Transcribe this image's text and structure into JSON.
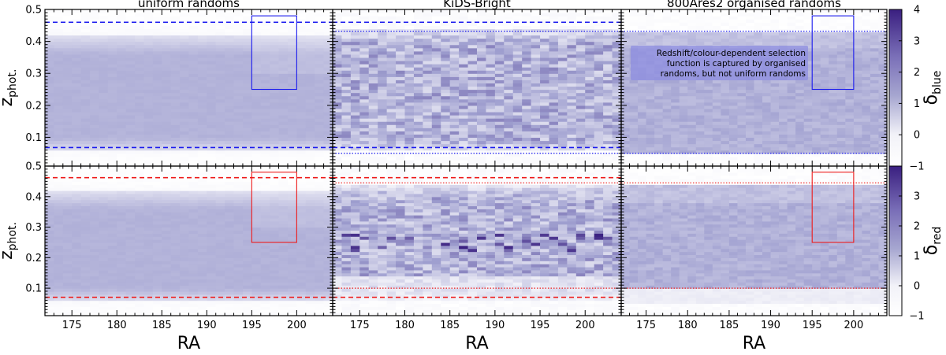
{
  "chart_data": {
    "type": "heatmap",
    "xlabel": "RA",
    "ylabel_main": "z",
    "ylabel_sub": "phot.",
    "xlim": [
      172,
      204
    ],
    "ylim": [
      0.01,
      0.5
    ],
    "xticks": [
      175,
      180,
      185,
      190,
      195,
      200
    ],
    "yticks": [
      0.1,
      0.2,
      0.3,
      0.4,
      0.5
    ],
    "columns": [
      "uniform randoms",
      "KiDS-Bright",
      "800Ares2 organised randoms"
    ],
    "rows": [
      {
        "name": "blue",
        "colorbar_label_main": "δ",
        "colorbar_label_sub": "blue",
        "colorbar_range": [
          -1,
          4
        ],
        "colorbar_ticks": [
          -1,
          0,
          1,
          2,
          3,
          4
        ],
        "line_color": "#1a1aee",
        "dashed_cuts": [
          0.068,
          0.46
        ],
        "dotted_cuts": [
          0.05,
          0.432
        ],
        "box": {
          "ra": [
            195,
            200
          ],
          "z": [
            0.25,
            0.48
          ]
        }
      },
      {
        "name": "red",
        "colorbar_label_main": "δ",
        "colorbar_label_sub": "red",
        "colorbar_range": [
          -1,
          4
        ],
        "colorbar_ticks": [
          -1,
          0,
          1,
          2,
          3
        ],
        "line_color": "#ee1a1a",
        "dashed_cuts": [
          0.07,
          0.462
        ],
        "dotted_cuts": [
          0.1,
          0.445
        ],
        "box": {
          "ra": [
            195,
            200
          ],
          "z": [
            0.25,
            0.48
          ]
        }
      }
    ],
    "annotation": [
      "Redshift/colour-dependent selection",
      "function is captured by organised",
      "randoms, but not uniform randoms"
    ]
  }
}
